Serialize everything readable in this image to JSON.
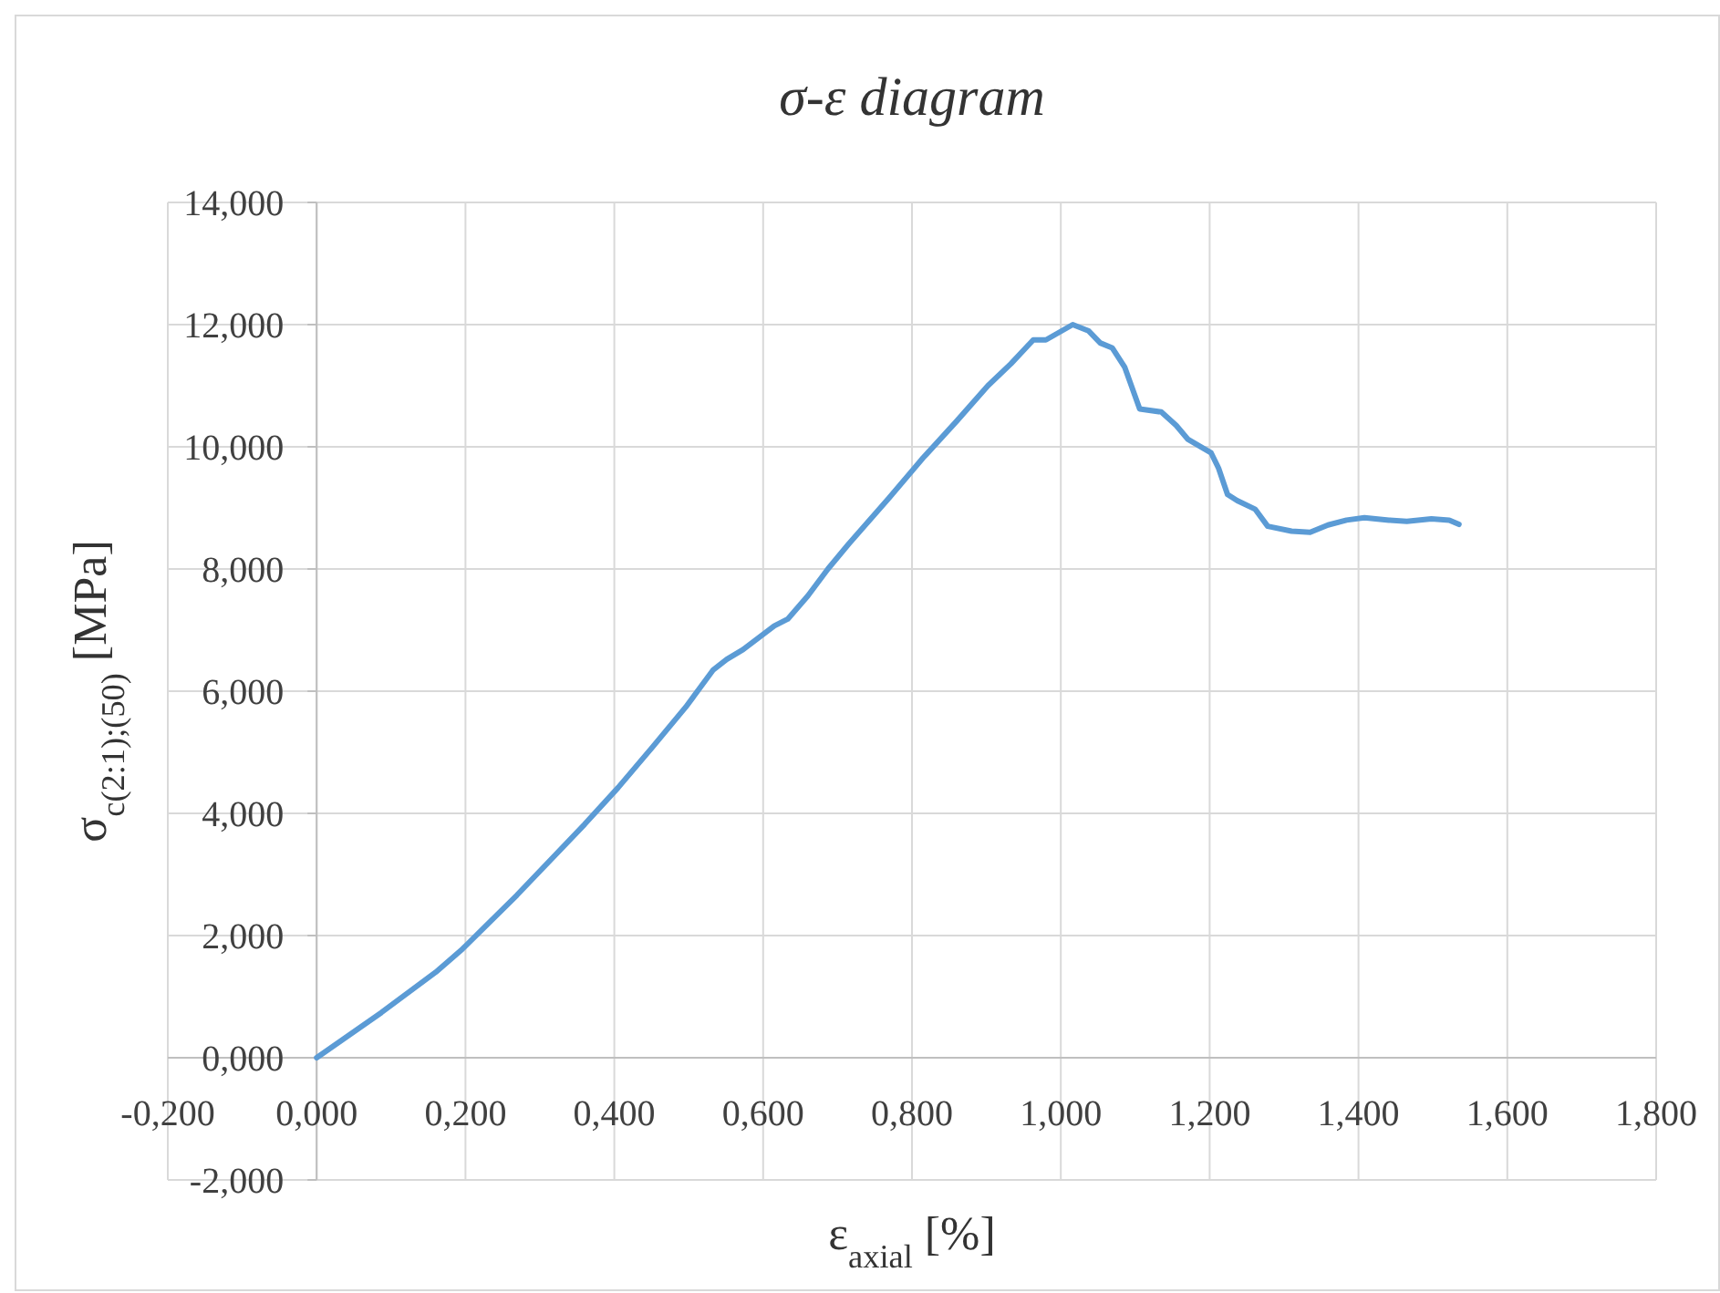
{
  "chart_data": {
    "type": "line",
    "title": "σ-ε diagram",
    "xlabel": "ε$_{axial}$ [%]",
    "ylabel": "σ$_{c(2:1);(50)}$ [MPa]",
    "xlim": [
      -0.2,
      1.8
    ],
    "ylim": [
      -2,
      14
    ],
    "xticks": [
      {
        "value": -0.2,
        "label": "-0,200"
      },
      {
        "value": 0,
        "label": "0,000"
      },
      {
        "value": 0.2,
        "label": "0,200"
      },
      {
        "value": 0.4,
        "label": "0,400"
      },
      {
        "value": 0.6,
        "label": "0,600"
      },
      {
        "value": 0.8,
        "label": "0,800"
      },
      {
        "value": 1,
        "label": "1,000"
      },
      {
        "value": 1.2,
        "label": "1,200"
      },
      {
        "value": 1.4,
        "label": "1,400"
      },
      {
        "value": 1.6,
        "label": "1,600"
      },
      {
        "value": 1.8,
        "label": "1,800"
      }
    ],
    "yticks": [
      {
        "value": -2,
        "label": "-2,000"
      },
      {
        "value": 0,
        "label": "0,000"
      },
      {
        "value": 2,
        "label": "2,000"
      },
      {
        "value": 4,
        "label": "4,000"
      },
      {
        "value": 6,
        "label": "6,000"
      },
      {
        "value": 8,
        "label": "8,000"
      },
      {
        "value": 10,
        "label": "10,000"
      },
      {
        "value": 12,
        "label": "12,000"
      },
      {
        "value": 14,
        "label": "14,000"
      }
    ],
    "grid": true,
    "marker": "none",
    "line_style": "solid",
    "series": [
      {
        "color": "#5b9bd5",
        "x": [
          0,
          0.087,
          0.16,
          0.196,
          0.269,
          0.36,
          0.405,
          0.451,
          0.496,
          0.533,
          0.551,
          0.573,
          0.615,
          0.633,
          0.66,
          0.687,
          0.715,
          0.769,
          0.815,
          0.86,
          0.902,
          0.933,
          0.963,
          0.98,
          1.016,
          1.037,
          1.053,
          1.069,
          1.086,
          1.106,
          1.135,
          1.155,
          1.171,
          1.202,
          1.212,
          1.224,
          1.237,
          1.261,
          1.278,
          1.31,
          1.335,
          1.359,
          1.384,
          1.408,
          1.441,
          1.465,
          1.498,
          1.522,
          1.535
        ],
        "values": [
          0,
          0.74,
          1.4,
          1.78,
          2.66,
          3.82,
          4.42,
          5.08,
          5.74,
          6.35,
          6.52,
          6.68,
          7.07,
          7.18,
          7.56,
          8.0,
          8.41,
          9.16,
          9.82,
          10.42,
          11.0,
          11.36,
          11.75,
          11.75,
          12.0,
          11.9,
          11.7,
          11.62,
          11.3,
          10.62,
          10.57,
          10.35,
          10.12,
          9.9,
          9.65,
          9.22,
          9.12,
          8.98,
          8.7,
          8.62,
          8.6,
          8.72,
          8.8,
          8.84,
          8.8,
          8.78,
          8.82,
          8.8,
          8.73
        ]
      }
    ]
  }
}
